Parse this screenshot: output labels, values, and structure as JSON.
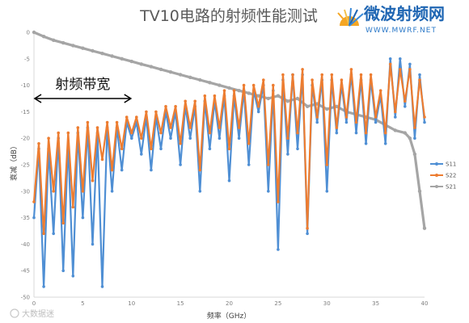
{
  "logo": {
    "name": "微波射频网",
    "url": "WWW.MWRF.NET"
  },
  "watermark": "大数据迷",
  "chart_data": {
    "type": "line",
    "title": "TV10电路的射频性能测试",
    "xlabel": "频率（GHz）",
    "ylabel": "衰减（dB）",
    "xlim": [
      0,
      40
    ],
    "ylim": [
      -50,
      0
    ],
    "x_ticks": [
      "0",
      "5",
      "10",
      "15",
      "20",
      "25",
      "30",
      "35",
      "40"
    ],
    "y_ticks": [
      "0",
      "-5",
      "-10",
      "-15",
      "-20",
      "-25",
      "-30",
      "-35",
      "-40",
      "-45",
      "-50"
    ],
    "grid": false,
    "legend_position": "right",
    "annotation": {
      "text": "射频带宽",
      "x_from": 0,
      "x_to": 10,
      "y": -12.5
    },
    "series": [
      {
        "name": "S11",
        "color": "#4f8fd4",
        "x": [
          0,
          0.5,
          1,
          1.5,
          2,
          2.5,
          3,
          3.5,
          4,
          4.5,
          5,
          5.5,
          6,
          6.5,
          7,
          7.5,
          8,
          8.5,
          9,
          9.5,
          10,
          10.5,
          11,
          11.5,
          12,
          12.5,
          13,
          13.5,
          14,
          14.5,
          15,
          15.5,
          16,
          16.5,
          17,
          17.5,
          18,
          18.5,
          19,
          19.5,
          20,
          20.5,
          21,
          21.5,
          22,
          22.5,
          23,
          23.5,
          24,
          24.5,
          25,
          25.5,
          26,
          26.5,
          27,
          27.5,
          28,
          28.5,
          29,
          29.5,
          30,
          30.5,
          31,
          31.5,
          32,
          32.5,
          33,
          33.5,
          34,
          34.5,
          35,
          35.5,
          36,
          36.5,
          37,
          37.5,
          38,
          38.5,
          39,
          39.5,
          40
        ],
        "values": [
          -35,
          -22,
          -48,
          -22,
          -38,
          -20,
          -45,
          -21,
          -46,
          -19,
          -35,
          -18,
          -40,
          -19,
          -48,
          -18,
          -30,
          -18,
          -26,
          -17,
          -20,
          -17,
          -23,
          -16,
          -26,
          -16,
          -22,
          -15,
          -20,
          -15,
          -25,
          -14,
          -20,
          -14,
          -30,
          -13,
          -22,
          -13,
          -20,
          -12,
          -28,
          -12,
          -20,
          -11,
          -25,
          -11,
          -15,
          -10,
          -30,
          -11,
          -41,
          -9,
          -23,
          -8,
          -22,
          -8,
          -38,
          -10,
          -17,
          -9,
          -30,
          -9,
          -19,
          -10,
          -17,
          -8,
          -19,
          -9,
          -21,
          -9,
          -17,
          -12,
          -21,
          -5,
          -16,
          -5,
          -14,
          -6,
          -20,
          -8,
          -17
        ]
      },
      {
        "name": "S22",
        "color": "#ed7d31",
        "x": [
          0,
          0.5,
          1,
          1.5,
          2,
          2.5,
          3,
          3.5,
          4,
          4.5,
          5,
          5.5,
          6,
          6.5,
          7,
          7.5,
          8,
          8.5,
          9,
          9.5,
          10,
          10.5,
          11,
          11.5,
          12,
          12.5,
          13,
          13.5,
          14,
          14.5,
          15,
          15.5,
          16,
          16.5,
          17,
          17.5,
          18,
          18.5,
          19,
          19.5,
          20,
          20.5,
          21,
          21.5,
          22,
          22.5,
          23,
          23.5,
          24,
          24.5,
          25,
          25.5,
          26,
          26.5,
          27,
          27.5,
          28,
          28.5,
          29,
          29.5,
          30,
          30.5,
          31,
          31.5,
          32,
          32.5,
          33,
          33.5,
          34,
          34.5,
          35,
          35.5,
          36,
          36.5,
          37,
          37.5,
          38,
          38.5,
          39,
          39.5,
          40
        ],
        "values": [
          -32,
          -21,
          -38,
          -20,
          -30,
          -19,
          -36,
          -19,
          -33,
          -18,
          -30,
          -17,
          -28,
          -18,
          -24,
          -17,
          -26,
          -17,
          -22,
          -16,
          -19,
          -16,
          -20,
          -15,
          -22,
          -15,
          -19,
          -14,
          -18,
          -14,
          -21,
          -13,
          -18,
          -13,
          -26,
          -12,
          -19,
          -12,
          -18,
          -11,
          -22,
          -11,
          -18,
          -10,
          -21,
          -10,
          -14,
          -9,
          -25,
          -10,
          -32,
          -8,
          -20,
          -8,
          -19,
          -7,
          -37,
          -9,
          -16,
          -8,
          -25,
          -8,
          -18,
          -9,
          -16,
          -7,
          -17,
          -8,
          -19,
          -8,
          -16,
          -11,
          -19,
          -6,
          -15,
          -7,
          -13,
          -7,
          -18,
          -9,
          -16
        ]
      },
      {
        "name": "S21",
        "color": "#a5a5a5",
        "x": [
          0,
          1,
          2,
          3,
          4,
          5,
          6,
          7,
          8,
          9,
          10,
          11,
          12,
          13,
          14,
          15,
          16,
          17,
          18,
          19,
          20,
          21,
          22,
          23,
          24,
          25,
          26,
          27,
          28,
          29,
          30,
          31,
          32,
          33,
          34,
          35,
          36,
          37,
          38,
          38.5,
          39,
          39.5,
          40
        ],
        "values": [
          0,
          -0.8,
          -1.5,
          -2.0,
          -2.5,
          -3.0,
          -3.5,
          -4.0,
          -4.5,
          -5.0,
          -5.5,
          -6.0,
          -6.5,
          -7.0,
          -7.5,
          -8.0,
          -8.5,
          -9.0,
          -9.5,
          -10.0,
          -10.5,
          -11.0,
          -11.5,
          -12.0,
          -12.5,
          -12.0,
          -13.0,
          -12.5,
          -14.0,
          -13.5,
          -14.5,
          -14.0,
          -15.0,
          -15.5,
          -16.0,
          -16.5,
          -17.5,
          -18.5,
          -19.0,
          -20.0,
          -23.0,
          -30.0,
          -37.0
        ]
      }
    ]
  }
}
